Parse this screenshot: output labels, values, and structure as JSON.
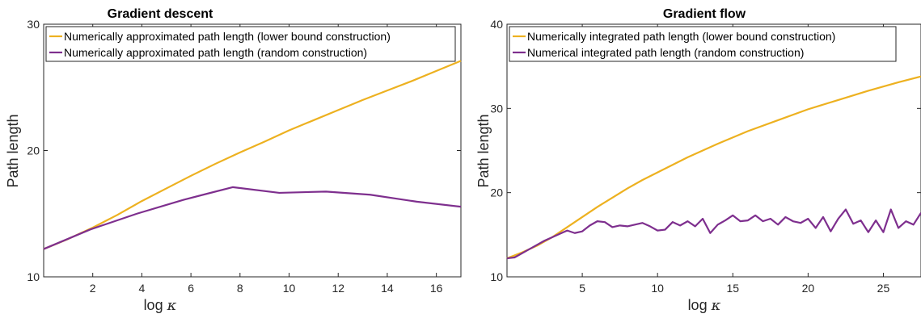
{
  "chart_data": [
    {
      "type": "line",
      "title": "Gradient descent",
      "xlabel": "log",
      "xlabel_symbol": "κ",
      "ylabel": "Path length",
      "xlim": [
        0,
        17
      ],
      "ylim": [
        10,
        30
      ],
      "xticks": [
        2,
        4,
        6,
        8,
        10,
        12,
        14,
        16
      ],
      "yticks": [
        10,
        20,
        30
      ],
      "grid": false,
      "legend_position": "top-left",
      "series": [
        {
          "name": "Numerically approximated path length (lower bound construction)",
          "color": "#EDB120",
          "x": [
            0,
            1,
            2,
            3,
            4,
            5,
            6,
            7,
            8,
            9,
            10,
            11,
            12,
            13,
            14,
            15,
            16,
            17
          ],
          "y": [
            12.2,
            13.0,
            13.9,
            14.9,
            16.0,
            17.0,
            18.0,
            18.95,
            19.85,
            20.7,
            21.6,
            22.4,
            23.2,
            24.0,
            24.75,
            25.5,
            26.3,
            27.1
          ]
        },
        {
          "name": "Numerically approximated path length (random construction)",
          "color": "#7E2F8E",
          "x": [
            0,
            1.9,
            3.8,
            5.7,
            7.7,
            9.6,
            11.5,
            13.3,
            15.2,
            17.0
          ],
          "y": [
            12.2,
            13.75,
            15.0,
            16.1,
            17.1,
            16.65,
            16.75,
            16.5,
            15.95,
            15.55
          ]
        }
      ]
    },
    {
      "type": "line",
      "title": "Gradient flow",
      "xlabel": "log",
      "xlabel_symbol": "κ",
      "ylabel": "Path length",
      "xlim": [
        0,
        27.5
      ],
      "ylim": [
        10,
        40
      ],
      "xticks": [
        5,
        10,
        15,
        20,
        25
      ],
      "yticks": [
        10,
        20,
        30,
        40
      ],
      "grid": false,
      "legend_position": "top-left",
      "series": [
        {
          "name": "Numerically integrated path length (lower bound construction)",
          "color": "#EDB120",
          "x": [
            0,
            1,
            2,
            3,
            4,
            5,
            6,
            7,
            8,
            9,
            10,
            12,
            14,
            16,
            18,
            20,
            22,
            24,
            26,
            27.5
          ],
          "y": [
            12.2,
            12.9,
            13.7,
            14.7,
            15.9,
            17.1,
            18.3,
            19.4,
            20.5,
            21.5,
            22.4,
            24.2,
            25.8,
            27.3,
            28.6,
            29.9,
            31.0,
            32.1,
            33.1,
            33.8
          ]
        },
        {
          "name": "Numerical integrated path length (random construction)",
          "color": "#7E2F8E",
          "x": [
            0,
            0.5,
            1.0,
            1.5,
            2.0,
            2.5,
            3.0,
            3.5,
            4.0,
            4.5,
            5.0,
            5.5,
            6.0,
            6.5,
            7.0,
            7.5,
            8.0,
            8.5,
            9.0,
            9.5,
            10.0,
            10.5,
            11.0,
            11.5,
            12.0,
            12.5,
            13.0,
            13.5,
            14.0,
            14.5,
            15.0,
            15.5,
            16.0,
            16.5,
            17.0,
            17.5,
            18.0,
            18.5,
            19.0,
            19.5,
            20.0,
            20.5,
            21.0,
            21.5,
            22.0,
            22.5,
            23.0,
            23.5,
            24.0,
            24.5,
            25.0,
            25.5,
            26.0,
            26.5,
            27.0,
            27.5
          ],
          "y": [
            12.2,
            12.3,
            12.8,
            13.3,
            13.8,
            14.3,
            14.7,
            15.1,
            15.5,
            15.2,
            15.4,
            16.1,
            16.6,
            16.5,
            15.9,
            16.1,
            16.0,
            16.2,
            16.4,
            16.0,
            15.5,
            15.6,
            16.5,
            16.1,
            16.6,
            16.0,
            16.9,
            15.2,
            16.2,
            16.7,
            17.3,
            16.6,
            16.7,
            17.3,
            16.6,
            16.9,
            16.2,
            17.1,
            16.6,
            16.4,
            16.9,
            15.8,
            17.1,
            15.4,
            16.9,
            18.0,
            16.3,
            16.7,
            15.3,
            16.7,
            15.3,
            18.0,
            15.8,
            16.6,
            16.2,
            17.6
          ]
        }
      ]
    }
  ]
}
